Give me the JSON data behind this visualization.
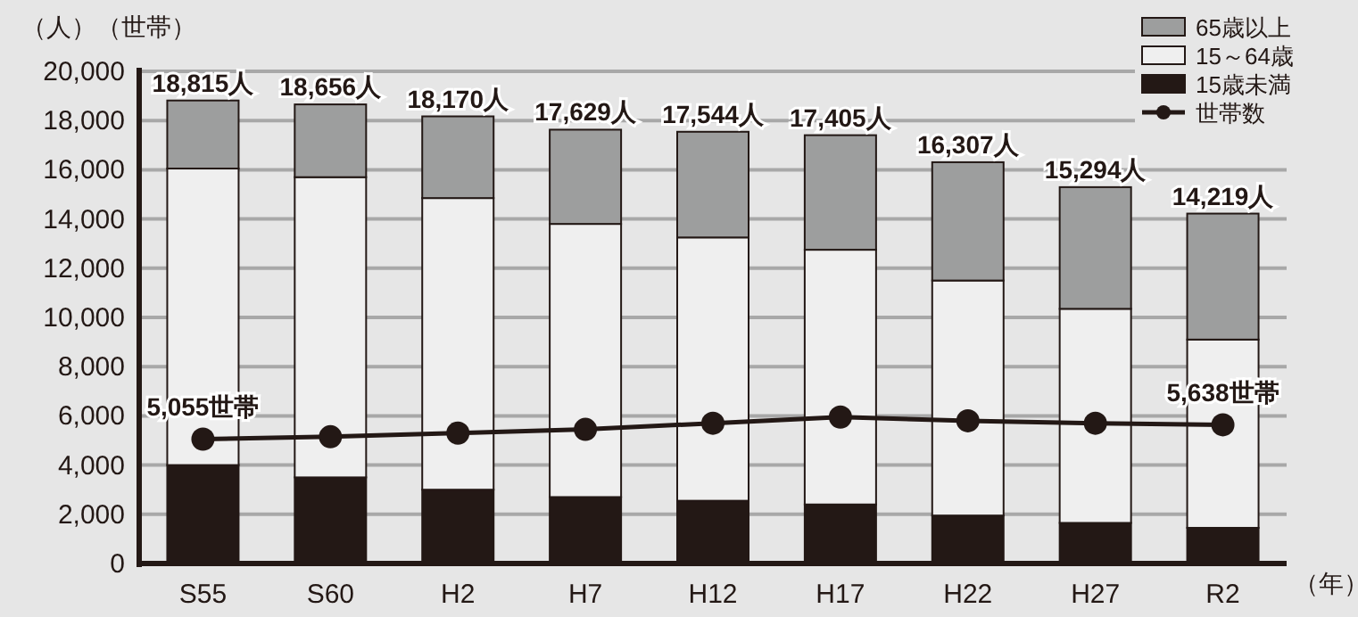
{
  "chart_data": {
    "type": "bar",
    "stacked": true,
    "ylabel": "（人）（世帯）",
    "xlabel": "（年）",
    "categories": [
      "S55",
      "S60",
      "H2",
      "H7",
      "H12",
      "H17",
      "H22",
      "H27",
      "R2"
    ],
    "series": [
      {
        "name": "15歳未満",
        "color": "#231815",
        "values": [
          4000,
          3500,
          3000,
          2700,
          2550,
          2400,
          1950,
          1650,
          1450
        ]
      },
      {
        "name": "15～64歳",
        "color": "#efefef",
        "values": [
          12050,
          12200,
          11850,
          11100,
          10700,
          10350,
          9550,
          8700,
          7650
        ]
      },
      {
        "name": "65歳以上",
        "color": "#9d9e9e",
        "values": [
          2765,
          2956,
          3320,
          3829,
          4294,
          4655,
          4807,
          4944,
          5119
        ]
      },
      {
        "name": "世帯数",
        "type": "line",
        "color": "#231815",
        "marker": "circle",
        "values": [
          5055,
          5150,
          5300,
          5450,
          5700,
          5950,
          5800,
          5700,
          5638
        ],
        "value_labels": [
          "5,055世帯",
          null,
          null,
          null,
          null,
          null,
          null,
          null,
          "5,638世帯"
        ]
      }
    ],
    "totals": [
      "18,815人",
      "18,656人",
      "18,170人",
      "17,629人",
      "17,544人",
      "17,405人",
      "16,307人",
      "15,294人",
      "14,219人"
    ],
    "ylim": [
      0,
      20000
    ],
    "yticks": [
      0,
      {
        "value": 2000,
        "label": "2,000"
      },
      {
        "value": 4000,
        "label": "4,000"
      },
      {
        "value": 6000,
        "label": "6,000"
      },
      {
        "value": 8000,
        "label": "8,000"
      },
      {
        "value": 10000,
        "label": "10,000"
      },
      {
        "value": 12000,
        "label": "12,000"
      },
      {
        "value": 14000,
        "label": "14,000"
      },
      {
        "value": 16000,
        "label": "16,000"
      },
      {
        "value": 18000,
        "label": "18,000"
      },
      {
        "value": 20000,
        "label": "20,000"
      }
    ],
    "grid": "y",
    "legend": "top right"
  }
}
